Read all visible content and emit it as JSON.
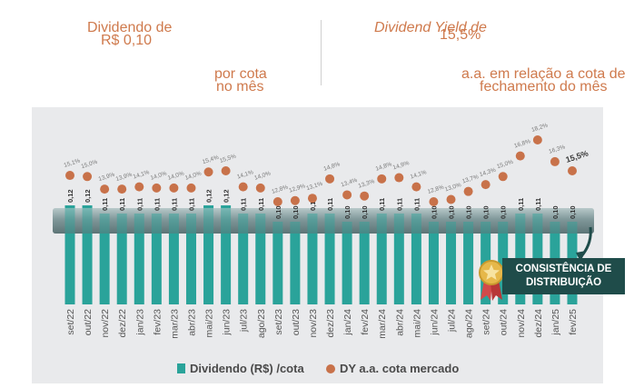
{
  "kpis": {
    "dividend": {
      "label": "Dividendo de",
      "value": "R$ 0,10",
      "sub1": "por cota",
      "sub2": "no mês"
    },
    "yield": {
      "label": "Dividend Yield de",
      "value": "15,5%",
      "sub1": "a.a. em relação a cota de",
      "sub2": "fechamento do mês"
    }
  },
  "callout": {
    "line1": "CONSISTÊNCIA DE",
    "line2": "DISTRIBUIÇÃO"
  },
  "legend": {
    "bar": "Dividendo (R$) /cota",
    "dot": "DY a.a. cota mercado"
  },
  "colors": {
    "bar": "#2aa39a",
    "dot": "#c8724a",
    "band": "#8aa2a4",
    "callout": "#1f4c4a",
    "kpi": "#cf7a4d"
  },
  "chart_data": {
    "type": "bar",
    "categories": [
      "set/22",
      "out/22",
      "nov/22",
      "dez/22",
      "jan/23",
      "fev/23",
      "mar/23",
      "abr/23",
      "mai/23",
      "jun/23",
      "jul/23",
      "ago/23",
      "set/23",
      "out/23",
      "nov/23",
      "dez/23",
      "jan/24",
      "fev/24",
      "mar/24",
      "abr/24",
      "mai/24",
      "jun/24",
      "jul/24",
      "ago/24",
      "set/24",
      "out/24",
      "nov/24",
      "dez/24",
      "jan/25",
      "fev/25"
    ],
    "series": [
      {
        "name": "Dividendo (R$) /cota",
        "type": "bar",
        "values": [
          0.12,
          0.12,
          0.11,
          0.11,
          0.11,
          0.11,
          0.11,
          0.11,
          0.12,
          0.12,
          0.11,
          0.11,
          0.1,
          0.1,
          0.11,
          0.11,
          0.1,
          0.1,
          0.11,
          0.11,
          0.11,
          0.1,
          0.1,
          0.1,
          0.1,
          0.1,
          0.11,
          0.11,
          0.1,
          0.1
        ],
        "labels": [
          "0,12",
          "0,12",
          "0,11",
          "0,11",
          "0,11",
          "0,11",
          "0,11",
          "0,11",
          "0,12",
          "0,12",
          "0,11",
          "0,11",
          "0,10",
          "0,10",
          "0,11",
          "0,11",
          "0,10",
          "0,10",
          "0,11",
          "0,11",
          "0,11",
          "0,10",
          "0,10",
          "0,10",
          "0,10",
          "0,10",
          "0,11",
          "0,11",
          "0,10",
          "0,10"
        ]
      },
      {
        "name": "DY a.a. cota mercado",
        "type": "scatter",
        "values": [
          15.1,
          15.0,
          13.9,
          13.9,
          14.1,
          14.0,
          14.0,
          14.0,
          15.4,
          15.5,
          14.1,
          14.0,
          12.8,
          12.9,
          13.1,
          14.8,
          13.4,
          13.3,
          14.8,
          14.9,
          14.1,
          12.8,
          13.0,
          13.7,
          14.3,
          15.0,
          16.8,
          18.2,
          16.3,
          15.5
        ],
        "labels": [
          "15,1%",
          "15,0%",
          "13,9%",
          "13,9%",
          "14,1%",
          "14,0%",
          "14,0%",
          "14,0%",
          "15,4%",
          "15,5%",
          "14,1%",
          "14,0%",
          "12,8%",
          "12,9%",
          "13,1%",
          "14,8%",
          "13,4%",
          "13,3%",
          "14,8%",
          "14,9%",
          "14,1%",
          "12,8%",
          "13,0%",
          "13,7%",
          "14,3%",
          "15,0%",
          "16,8%",
          "18,2%",
          "16,3%",
          "15,5%"
        ]
      }
    ],
    "highlight_index": 29,
    "legend_position": "bottom",
    "grid": false
  }
}
